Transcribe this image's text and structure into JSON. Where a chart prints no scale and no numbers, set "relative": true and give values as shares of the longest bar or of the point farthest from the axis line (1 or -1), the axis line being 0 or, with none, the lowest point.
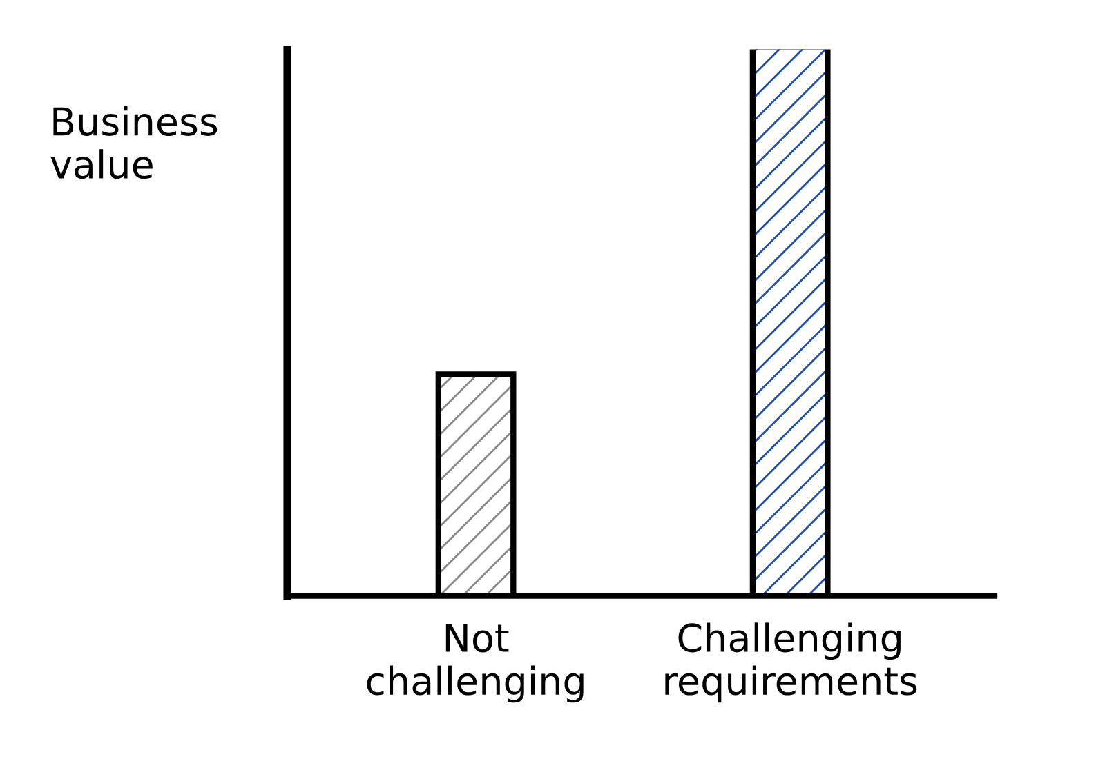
{
  "chart_data": {
    "type": "bar",
    "relative": true,
    "ylabel": "Business\nvalue",
    "categories": [
      "Not\nchallenging",
      "Challenging\nrequirements"
    ],
    "values": [
      0.4,
      1
    ],
    "colors": [
      "#888888",
      "#1f4ea8"
    ]
  }
}
